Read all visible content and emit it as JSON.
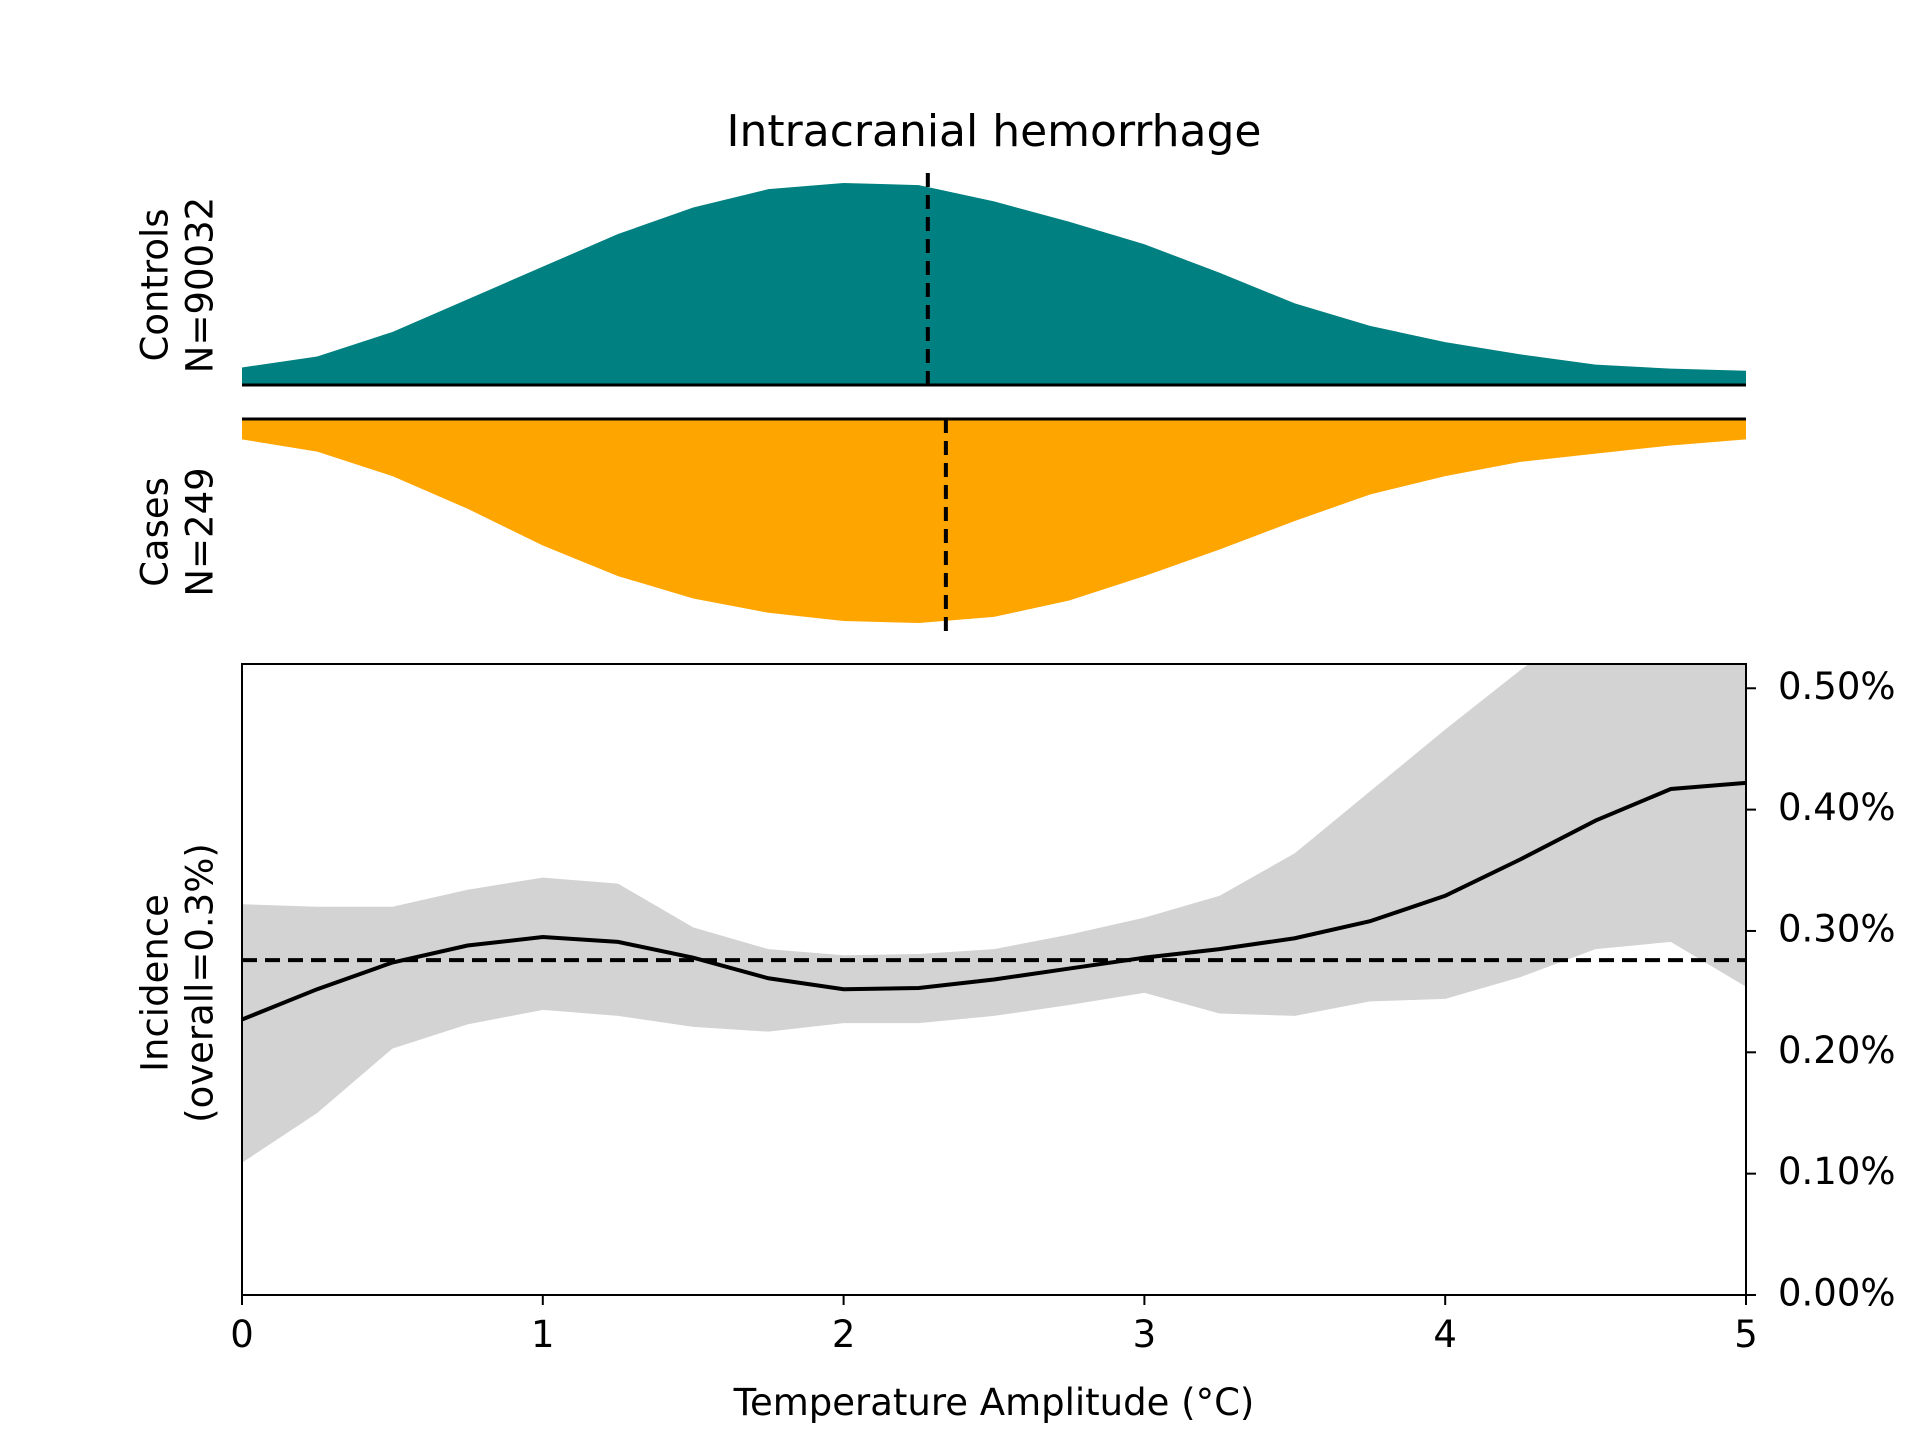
{
  "title": "Intracranial hemorrhage",
  "chart_data": [
    {
      "type": "area",
      "ylabel": [
        "Controls",
        "N=90032"
      ],
      "color": "#008080",
      "inverted": false,
      "median": 2.28,
      "xlim": [
        0,
        5
      ],
      "ylim": [
        0,
        1
      ],
      "x": [
        0,
        0.25,
        0.5,
        0.75,
        1,
        1.25,
        1.5,
        1.75,
        2,
        2.25,
        2.5,
        2.75,
        3,
        3.25,
        3.5,
        3.75,
        4,
        4.25,
        4.5,
        4.75,
        5
      ],
      "values": [
        0.086,
        0.14,
        0.26,
        0.42,
        0.58,
        0.74,
        0.87,
        0.96,
        0.99,
        0.98,
        0.9,
        0.8,
        0.69,
        0.55,
        0.4,
        0.29,
        0.21,
        0.15,
        0.1,
        0.08,
        0.07
      ]
    },
    {
      "type": "area",
      "ylabel": [
        "Cases",
        "N=249"
      ],
      "color": "#ffa500",
      "inverted": true,
      "median": 2.34,
      "xlim": [
        0,
        5
      ],
      "ylim": [
        0,
        1
      ],
      "x": [
        0,
        0.25,
        0.5,
        0.75,
        1,
        1.25,
        1.5,
        1.75,
        2,
        2.25,
        2.5,
        2.75,
        3,
        3.25,
        3.5,
        3.75,
        4,
        4.25,
        4.5,
        4.75,
        5
      ],
      "values": [
        0.1,
        0.16,
        0.28,
        0.44,
        0.62,
        0.77,
        0.88,
        0.95,
        0.99,
        1.0,
        0.97,
        0.89,
        0.77,
        0.64,
        0.5,
        0.37,
        0.28,
        0.21,
        0.17,
        0.13,
        0.1
      ]
    },
    {
      "type": "line",
      "ylabel": [
        "Incidence",
        "(overall=0.3%)"
      ],
      "xlabel": "Temperature Amplitude (°C)",
      "color": "#000000",
      "band_color": "#d3d3d3",
      "overall": 0.276,
      "yaxis_side": "right",
      "xlim": [
        0,
        5
      ],
      "xticks": [
        0,
        1,
        2,
        3,
        4,
        5
      ],
      "ylim": [
        0,
        0.52
      ],
      "yticks": [
        {
          "value": 0,
          "label": "0.00%"
        },
        {
          "value": 0.1,
          "label": "0.10%"
        },
        {
          "value": 0.2,
          "label": "0.20%"
        },
        {
          "value": 0.3,
          "label": "0.30%"
        },
        {
          "value": 0.4,
          "label": "0.40%"
        },
        {
          "value": 0.5,
          "label": "0.50%"
        }
      ],
      "x": [
        0,
        0.25,
        0.5,
        0.75,
        1,
        1.25,
        1.5,
        1.75,
        2,
        2.25,
        2.5,
        2.75,
        3,
        3.25,
        3.5,
        3.75,
        4,
        4.25,
        4.5,
        4.75,
        5
      ],
      "values": [
        0.227,
        0.252,
        0.274,
        0.288,
        0.295,
        0.291,
        0.278,
        0.261,
        0.252,
        0.253,
        0.26,
        0.269,
        0.278,
        0.285,
        0.294,
        0.308,
        0.329,
        0.359,
        0.391,
        0.417,
        0.422
      ],
      "upper": [
        0.322,
        0.32,
        0.32,
        0.334,
        0.344,
        0.339,
        0.303,
        0.285,
        0.28,
        0.281,
        0.285,
        0.297,
        0.311,
        0.329,
        0.364,
        0.415,
        0.466,
        0.515,
        0.56,
        0.6,
        0.62
      ],
      "lower": [
        0.109,
        0.15,
        0.203,
        0.223,
        0.235,
        0.23,
        0.221,
        0.217,
        0.224,
        0.224,
        0.23,
        0.239,
        0.249,
        0.232,
        0.23,
        0.242,
        0.244,
        0.262,
        0.285,
        0.291,
        0.254
      ]
    }
  ]
}
